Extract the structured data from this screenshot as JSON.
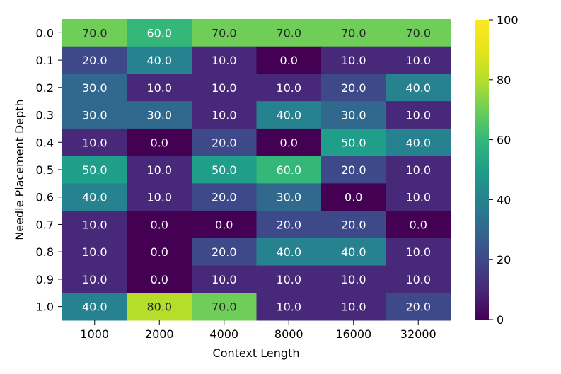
{
  "chart_data": {
    "type": "heatmap",
    "title": "",
    "xlabel": "Context Length",
    "ylabel": "Needle Placement Depth",
    "x_categories": [
      "1000",
      "2000",
      "4000",
      "8000",
      "16000",
      "32000"
    ],
    "y_categories": [
      "0.0",
      "0.1",
      "0.2",
      "0.3",
      "0.4",
      "0.5",
      "0.6",
      "0.7",
      "0.8",
      "0.9",
      "1.0"
    ],
    "values": [
      [
        70,
        60,
        70,
        70,
        70,
        70
      ],
      [
        20,
        40,
        10,
        0,
        10,
        10
      ],
      [
        30,
        10,
        10,
        10,
        20,
        40
      ],
      [
        30,
        30,
        10,
        40,
        30,
        10
      ],
      [
        10,
        0,
        20,
        0,
        50,
        40
      ],
      [
        50,
        10,
        50,
        60,
        20,
        10
      ],
      [
        40,
        10,
        20,
        30,
        0,
        10
      ],
      [
        10,
        0,
        0,
        20,
        20,
        0
      ],
      [
        10,
        0,
        20,
        40,
        40,
        10
      ],
      [
        10,
        0,
        10,
        10,
        10,
        10
      ],
      [
        40,
        80,
        70,
        10,
        10,
        20
      ]
    ],
    "cell_label_format": "one_decimal",
    "colormap": "viridis",
    "colorbar": {
      "range": [
        0,
        100
      ],
      "ticks": [
        "0",
        "20",
        "40",
        "60",
        "80",
        "100"
      ],
      "placement": "right"
    },
    "grid": false
  }
}
